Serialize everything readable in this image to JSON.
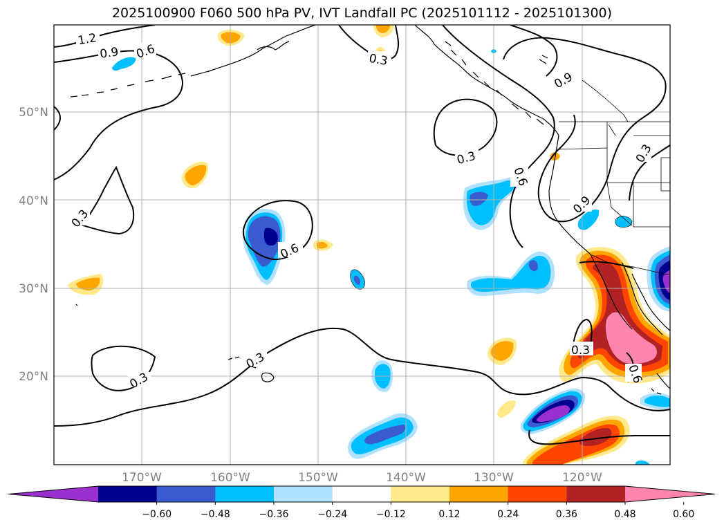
{
  "title": "2025100900 F060 500 hPa PV, IVT Landfall PC (2025101112 - 2025101300)",
  "axes": {
    "lat_ticks": [
      "50°N",
      "40°N",
      "30°N",
      "20°N"
    ],
    "lon_ticks": [
      "170°W",
      "160°W",
      "150°W",
      "140°W",
      "130°W",
      "120°W"
    ]
  },
  "colorbar": {
    "ticks": [
      "−0.60",
      "−0.48",
      "−0.36",
      "−0.24",
      "−0.12",
      "0.12",
      "0.24",
      "0.36",
      "0.48",
      "0.60"
    ],
    "colors": [
      "#9b30d0",
      "#000090",
      "#3a5bd0",
      "#00bfff",
      "#b0e2ff",
      "#ffffff",
      "#ffe98a",
      "#ffa500",
      "#ff4500",
      "#b22222",
      "#ff85b0"
    ]
  },
  "contour_labels": [
    "1.2",
    "0.9",
    "0.6",
    "0.3",
    "0.3",
    "0.9",
    "0.3",
    "0.6",
    "0.9",
    "0.3",
    "0.3",
    "0.6",
    "0.3",
    "0.3",
    "0.3",
    "0.6"
  ],
  "colors": {
    "grid": "#b0b0b0",
    "land_outline": "#000000",
    "tick_text": "#808080"
  }
}
